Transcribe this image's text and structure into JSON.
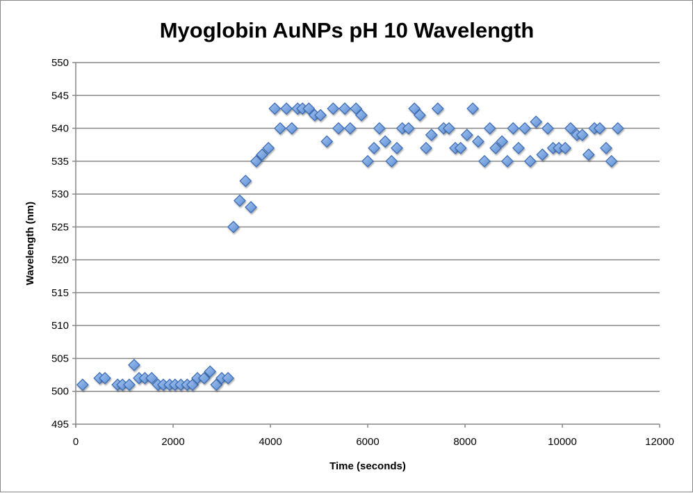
{
  "chart_data": {
    "type": "scatter",
    "title": "Myoglobin AuNPs pH 10 Wavelength",
    "xlabel": "Time (seconds)",
    "ylabel": "Wavelength (nm)",
    "xlim": [
      0,
      12000
    ],
    "ylim": [
      495,
      550
    ],
    "xticks": [
      "0",
      "2000",
      "4000",
      "6000",
      "8000",
      "10000",
      "12000"
    ],
    "yticks": [
      "495",
      "500",
      "505",
      "510",
      "515",
      "520",
      "525",
      "530",
      "535",
      "540",
      "545",
      "550"
    ],
    "grid": "horizontal major",
    "legend": "none",
    "marker_color": "#4f81bd",
    "points": [
      [
        140,
        501
      ],
      [
        490,
        502
      ],
      [
        600,
        502
      ],
      [
        860,
        501
      ],
      [
        960,
        501
      ],
      [
        1100,
        501
      ],
      [
        1200,
        504
      ],
      [
        1300,
        502
      ],
      [
        1420,
        502
      ],
      [
        1560,
        502
      ],
      [
        1690,
        501
      ],
      [
        1800,
        501
      ],
      [
        1930,
        501
      ],
      [
        2040,
        501
      ],
      [
        2160,
        501
      ],
      [
        2290,
        501
      ],
      [
        2400,
        501
      ],
      [
        2500,
        502
      ],
      [
        2640,
        502
      ],
      [
        2760,
        503
      ],
      [
        2890,
        501
      ],
      [
        3000,
        502
      ],
      [
        3130,
        502
      ],
      [
        3240,
        525
      ],
      [
        3370,
        529
      ],
      [
        3490,
        532
      ],
      [
        3600,
        528
      ],
      [
        3710,
        535
      ],
      [
        3830,
        536
      ],
      [
        3960,
        537
      ],
      [
        4090,
        543
      ],
      [
        4200,
        540
      ],
      [
        4330,
        543
      ],
      [
        4440,
        540
      ],
      [
        4560,
        543
      ],
      [
        4660,
        543
      ],
      [
        4790,
        543
      ],
      [
        4910,
        542
      ],
      [
        5030,
        542
      ],
      [
        5160,
        538
      ],
      [
        5290,
        543
      ],
      [
        5400,
        540
      ],
      [
        5530,
        543
      ],
      [
        5640,
        540
      ],
      [
        5760,
        543
      ],
      [
        5870,
        542
      ],
      [
        6000,
        535
      ],
      [
        6130,
        537
      ],
      [
        6240,
        540
      ],
      [
        6360,
        538
      ],
      [
        6490,
        535
      ],
      [
        6600,
        537
      ],
      [
        6710,
        540
      ],
      [
        6840,
        540
      ],
      [
        6960,
        543
      ],
      [
        7070,
        542
      ],
      [
        7200,
        537
      ],
      [
        7310,
        539
      ],
      [
        7440,
        543
      ],
      [
        7560,
        540
      ],
      [
        7670,
        540
      ],
      [
        7800,
        537
      ],
      [
        7910,
        537
      ],
      [
        8040,
        539
      ],
      [
        8160,
        543
      ],
      [
        8270,
        538
      ],
      [
        8400,
        535
      ],
      [
        8510,
        540
      ],
      [
        8630,
        537
      ],
      [
        8760,
        538
      ],
      [
        8870,
        535
      ],
      [
        8990,
        540
      ],
      [
        9100,
        537
      ],
      [
        9230,
        540
      ],
      [
        9340,
        535
      ],
      [
        9460,
        541
      ],
      [
        9590,
        536
      ],
      [
        9700,
        540
      ],
      [
        9810,
        537
      ],
      [
        9930,
        537
      ],
      [
        10060,
        537
      ],
      [
        10170,
        540
      ],
      [
        10300,
        539
      ],
      [
        10410,
        539
      ],
      [
        10540,
        536
      ],
      [
        10660,
        540
      ],
      [
        10770,
        540
      ],
      [
        10900,
        537
      ],
      [
        11010,
        535
      ],
      [
        11140,
        540
      ]
    ]
  }
}
